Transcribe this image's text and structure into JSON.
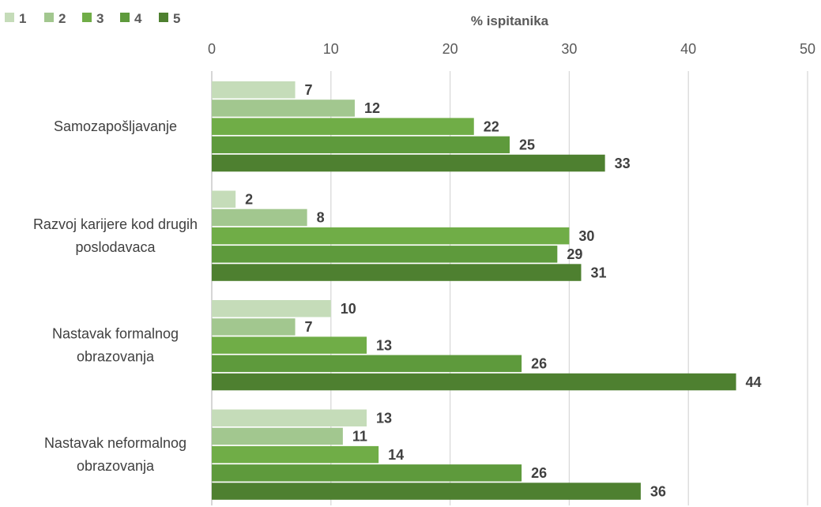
{
  "chart_data": {
    "type": "bar",
    "orientation": "horizontal",
    "title": "",
    "xlabel": "% ispitanika",
    "ylabel": "",
    "xlim": [
      0,
      50
    ],
    "xticks": [
      0,
      10,
      20,
      30,
      40,
      50
    ],
    "grid": true,
    "legend_position": "top-left",
    "categories": [
      [
        "Samozapošljavanje"
      ],
      [
        "Razvoj karijere kod drugih",
        "poslodavaca"
      ],
      [
        "Nastavak formalnog",
        "obrazovanja"
      ],
      [
        "Nastavak neformalnog",
        "obrazovanja"
      ]
    ],
    "series": [
      {
        "name": "1",
        "color": "#c5dcb9",
        "values": [
          7,
          2,
          10,
          13
        ]
      },
      {
        "name": "2",
        "color": "#a2c78f",
        "values": [
          12,
          8,
          7,
          11
        ]
      },
      {
        "name": "3",
        "color": "#70ad47",
        "values": [
          22,
          30,
          13,
          14
        ]
      },
      {
        "name": "4",
        "color": "#5e9a3c",
        "values": [
          25,
          29,
          26,
          26
        ]
      },
      {
        "name": "5",
        "color": "#4e8030",
        "values": [
          33,
          31,
          44,
          36
        ]
      }
    ]
  }
}
